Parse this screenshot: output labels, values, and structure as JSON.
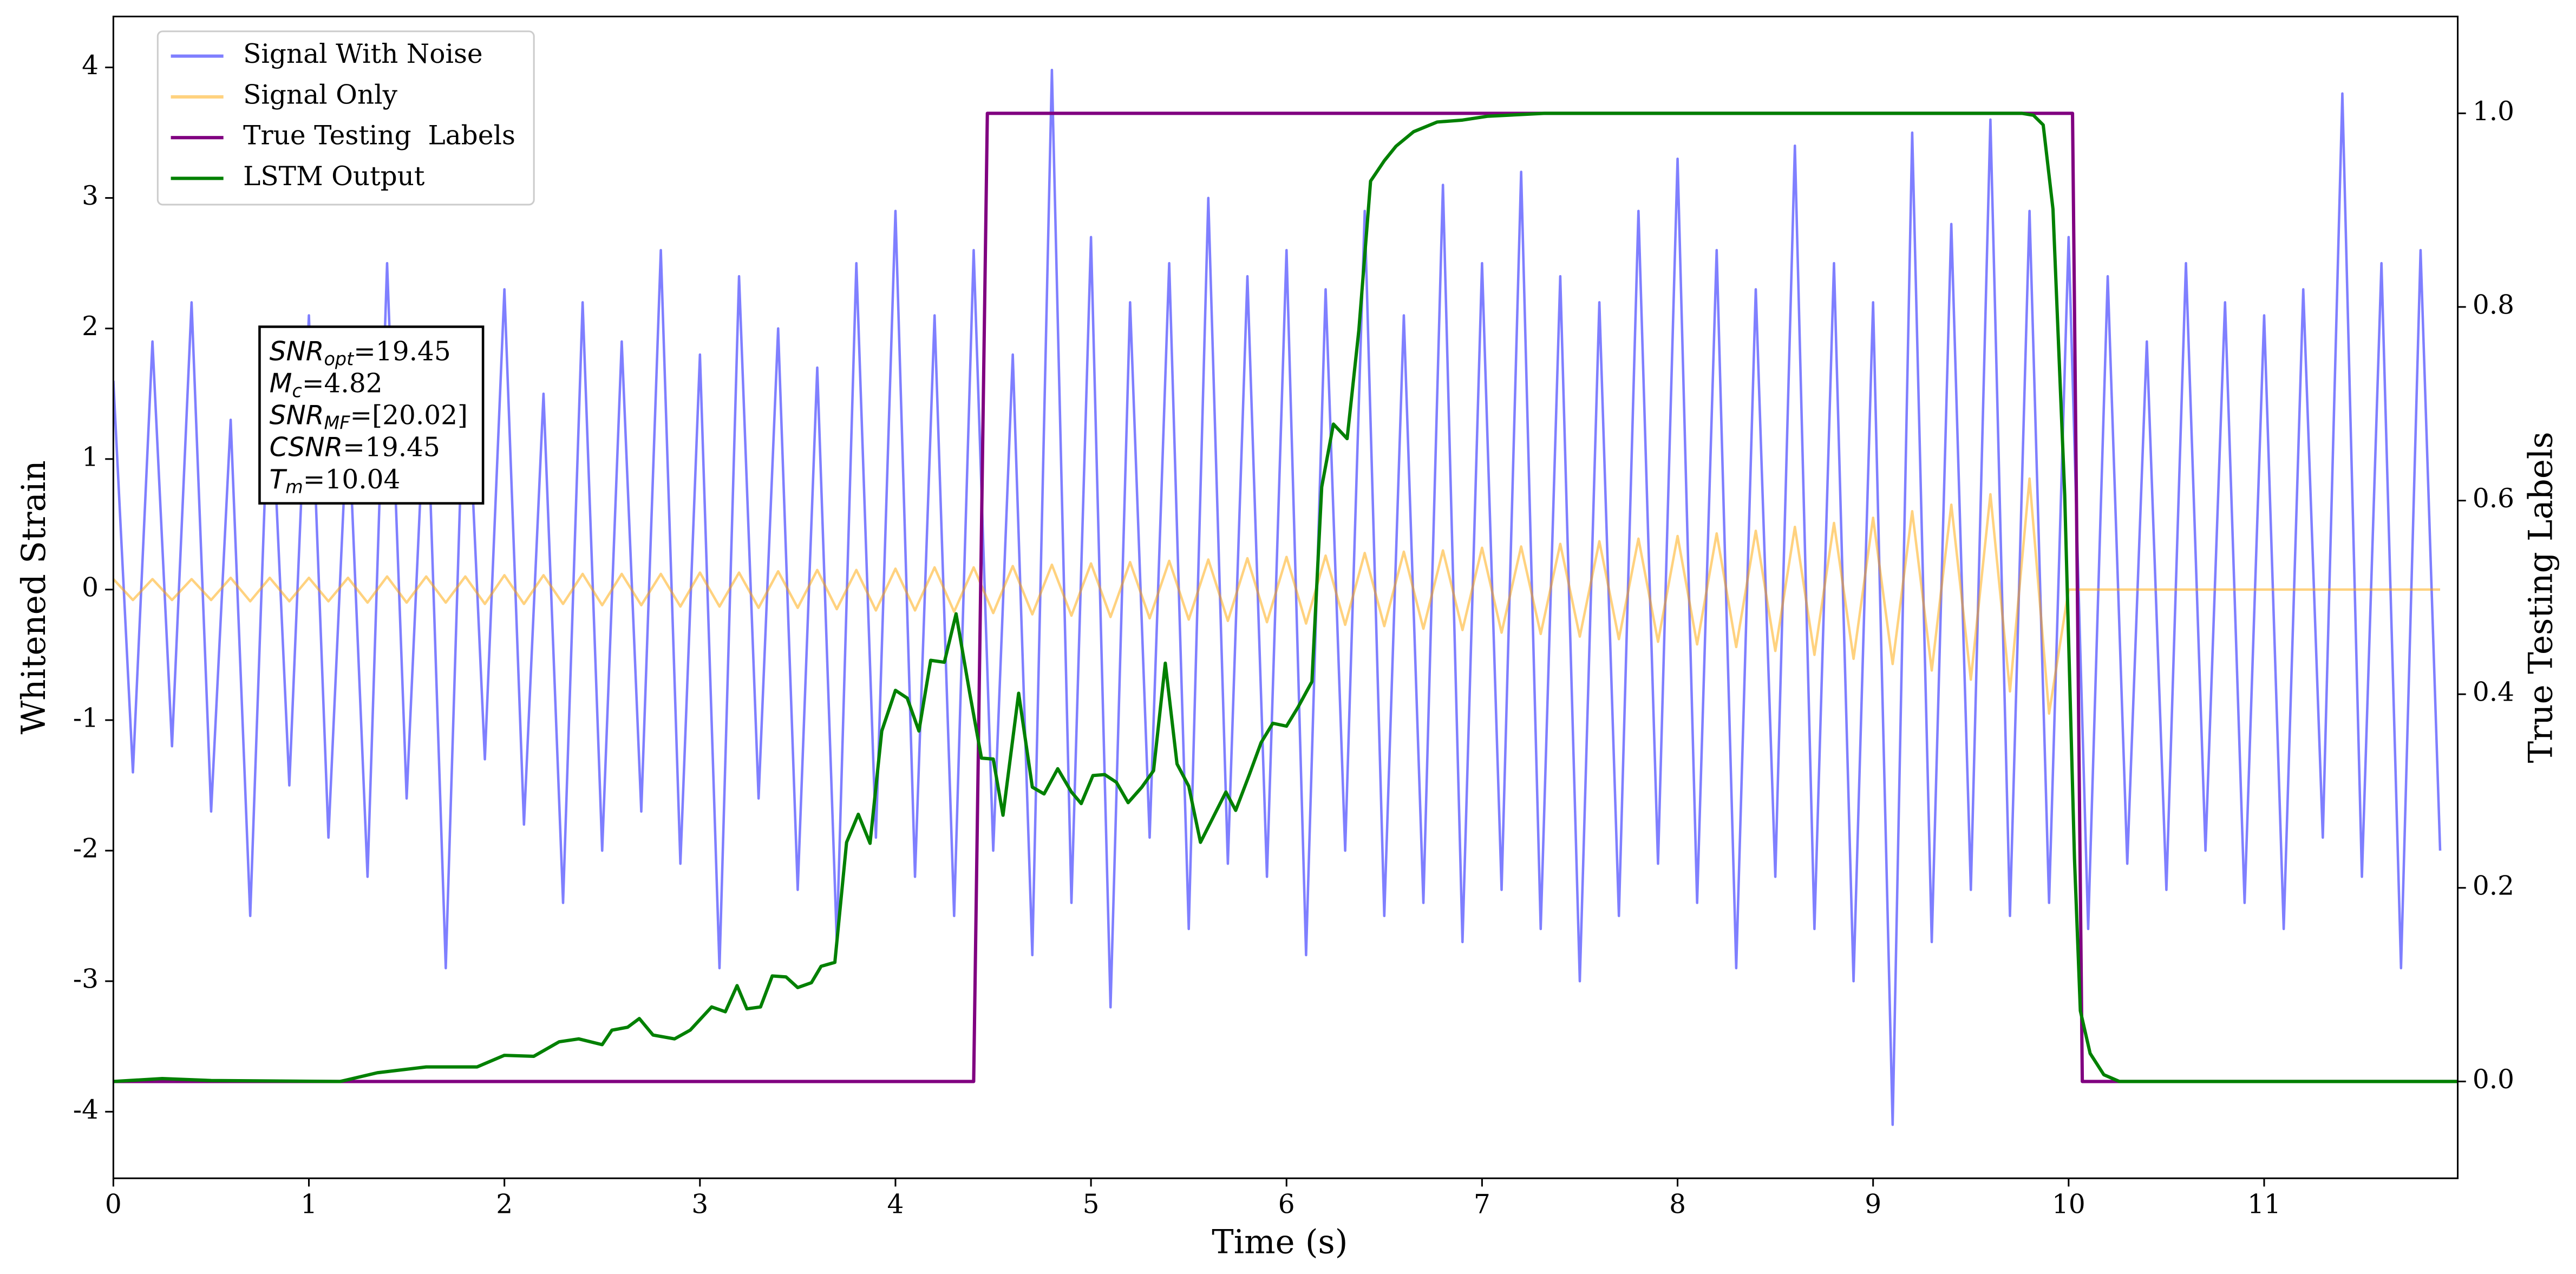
{
  "chart_data": {
    "type": "line",
    "xlabel": "Time (s)",
    "ylabel": "Whitened Strain",
    "y2label": "True Testing Labels",
    "xlim": [
      0,
      11.99
    ],
    "ylim": [
      -4.51,
      4.39
    ],
    "y2lim": [
      -0.1,
      1.1
    ],
    "xticks": [
      0,
      1,
      2,
      3,
      4,
      5,
      6,
      7,
      8,
      9,
      10,
      11
    ],
    "yticks": [
      -4,
      -3,
      -2,
      -1,
      0,
      1,
      2,
      3,
      4
    ],
    "y2ticks": [
      {
        "value": 0,
        "label": "0.0"
      },
      {
        "value": 0.2,
        "label": "0.2"
      },
      {
        "value": 0.4,
        "label": "0.4"
      },
      {
        "value": 0.6,
        "label": "0.6"
      },
      {
        "value": 0.8,
        "label": "0.8"
      },
      {
        "value": 1,
        "label": "1.0"
      }
    ],
    "grid": false,
    "legend": "upper left",
    "annotation": [
      {
        "main": "SNR",
        "sub": "opt",
        "rest": "=19.45"
      },
      {
        "main": "M",
        "sub": "c",
        "rest": "=4.82"
      },
      {
        "main": "SNR",
        "sub": "MF",
        "rest": "=[20.02]"
      },
      {
        "main": "CSNR",
        "rest": "=19.45"
      },
      {
        "main": "T",
        "sub": "m",
        "rest": "=10.04"
      }
    ],
    "series": [
      {
        "name": "Signal With Noise",
        "color": "#0000ff",
        "opacity": 0.5,
        "axis": "y",
        "x": [
          0,
          0.1,
          0.2,
          0.3,
          0.4,
          0.5,
          0.6,
          0.7,
          0.8,
          0.9,
          1,
          1.1,
          1.2,
          1.3,
          1.4,
          1.5,
          1.6,
          1.7,
          1.8,
          1.9,
          2,
          2.1,
          2.2,
          2.3,
          2.4,
          2.5,
          2.6,
          2.7,
          2.8,
          2.9,
          3,
          3.1,
          3.2,
          3.3,
          3.4,
          3.5,
          3.6,
          3.7,
          3.8,
          3.9,
          4,
          4.1,
          4.2,
          4.3,
          4.4,
          4.5,
          4.6,
          4.7,
          4.8,
          4.9,
          5,
          5.1,
          5.2,
          5.3,
          5.4,
          5.5,
          5.6,
          5.7,
          5.8,
          5.9,
          6,
          6.1,
          6.2,
          6.3,
          6.4,
          6.5,
          6.6,
          6.7,
          6.8,
          6.9,
          7,
          7.1,
          7.2,
          7.3,
          7.4,
          7.5,
          7.6,
          7.7,
          7.8,
          7.9,
          8,
          8.1,
          8.2,
          8.3,
          8.4,
          8.5,
          8.6,
          8.7,
          8.8,
          8.9,
          9,
          9.1,
          9.2,
          9.3,
          9.4,
          9.5,
          9.6,
          9.7,
          9.8,
          9.9,
          10,
          10.1,
          10.2,
          10.3,
          10.4,
          10.5,
          10.6,
          10.7,
          10.8,
          10.9,
          11,
          11.1,
          11.2,
          11.3,
          11.4,
          11.5,
          11.6,
          11.7,
          11.8,
          11.9
        ],
        "values": [
          1.6,
          -1.4,
          1.9,
          -1.2,
          2.2,
          -1.7,
          1.3,
          -2.5,
          1.8,
          -1.5,
          2.1,
          -1.9,
          1.4,
          -2.2,
          2.5,
          -1.6,
          1.7,
          -2.9,
          2.0,
          -1.3,
          2.3,
          -1.8,
          1.5,
          -2.4,
          2.2,
          -2.0,
          1.9,
          -1.7,
          2.6,
          -2.1,
          1.8,
          -2.9,
          2.4,
          -1.6,
          2.0,
          -2.3,
          1.7,
          -2.7,
          2.5,
          -1.9,
          2.9,
          -2.2,
          2.1,
          -2.5,
          2.6,
          -2.0,
          1.8,
          -2.8,
          3.98,
          -2.4,
          2.7,
          -3.2,
          2.2,
          -1.9,
          2.5,
          -2.6,
          3.0,
          -2.1,
          2.4,
          -2.2,
          2.6,
          -2.8,
          2.3,
          -2.0,
          2.9,
          -2.5,
          2.1,
          -2.4,
          3.1,
          -2.7,
          2.5,
          -2.3,
          3.2,
          -2.6,
          2.4,
          -3.0,
          2.2,
          -2.5,
          2.9,
          -2.1,
          3.3,
          -2.4,
          2.6,
          -2.9,
          2.3,
          -2.2,
          3.4,
          -2.6,
          2.5,
          -3.0,
          2.2,
          -4.1,
          3.5,
          -2.7,
          2.8,
          -2.3,
          3.6,
          -2.5,
          2.9,
          -2.4,
          2.7,
          -2.6,
          2.4,
          -2.1,
          1.9,
          -2.3,
          2.5,
          -2.0,
          2.2,
          -2.4,
          2.1,
          -2.6,
          2.3,
          -1.9,
          3.8,
          -2.2,
          2.5,
          -2.9,
          2.6,
          -2.0
        ]
      },
      {
        "name": "Signal Only",
        "color": "#ffa500",
        "opacity": 0.5,
        "axis": "y",
        "x": [
          0,
          0.1,
          0.2,
          0.3,
          0.4,
          0.5,
          0.6,
          0.7,
          0.8,
          0.9,
          1,
          1.1,
          1.2,
          1.3,
          1.4,
          1.5,
          1.6,
          1.7,
          1.8,
          1.9,
          2,
          2.1,
          2.2,
          2.3,
          2.4,
          2.5,
          2.6,
          2.7,
          2.8,
          2.9,
          3,
          3.1,
          3.2,
          3.3,
          3.4,
          3.5,
          3.6,
          3.7,
          3.8,
          3.9,
          4,
          4.1,
          4.2,
          4.3,
          4.4,
          4.5,
          4.6,
          4.7,
          4.8,
          4.9,
          5,
          5.1,
          5.2,
          5.3,
          5.4,
          5.5,
          5.6,
          5.7,
          5.8,
          5.9,
          6,
          6.1,
          6.2,
          6.3,
          6.4,
          6.5,
          6.6,
          6.7,
          6.8,
          6.9,
          7,
          7.1,
          7.2,
          7.3,
          7.4,
          7.5,
          7.6,
          7.7,
          7.8,
          7.9,
          8,
          8.1,
          8.2,
          8.3,
          8.4,
          8.5,
          8.6,
          8.7,
          8.8,
          8.9,
          9,
          9.1,
          9.2,
          9.3,
          9.4,
          9.5,
          9.6,
          9.7,
          9.8,
          9.9,
          10,
          10.1,
          10.2,
          10.3,
          10.4,
          10.5,
          10.6,
          10.7,
          10.8,
          10.9,
          11,
          11.1,
          11.2,
          11.3,
          11.4,
          11.5,
          11.6,
          11.7,
          11.8,
          11.9
        ],
        "values": [
          0.08,
          -0.08,
          0.08,
          -0.08,
          0.08,
          -0.08,
          0.09,
          -0.09,
          0.09,
          -0.09,
          0.09,
          -0.09,
          0.09,
          -0.1,
          0.1,
          -0.1,
          0.1,
          -0.1,
          0.1,
          -0.11,
          0.11,
          -0.11,
          0.11,
          -0.11,
          0.12,
          -0.12,
          0.12,
          -0.12,
          0.12,
          -0.13,
          0.13,
          -0.13,
          0.13,
          -0.14,
          0.14,
          -0.14,
          0.15,
          -0.15,
          0.15,
          -0.16,
          0.16,
          -0.16,
          0.17,
          -0.17,
          0.17,
          -0.18,
          0.18,
          -0.19,
          0.19,
          -0.2,
          0.2,
          -0.21,
          0.21,
          -0.22,
          0.22,
          -0.23,
          0.23,
          -0.24,
          0.24,
          -0.25,
          0.25,
          -0.26,
          0.26,
          -0.27,
          0.28,
          -0.28,
          0.29,
          -0.3,
          0.3,
          -0.31,
          0.32,
          -0.33,
          0.33,
          -0.34,
          0.35,
          -0.36,
          0.37,
          -0.38,
          0.39,
          -0.4,
          0.41,
          -0.42,
          0.43,
          -0.44,
          0.45,
          -0.47,
          0.48,
          -0.5,
          0.51,
          -0.53,
          0.55,
          -0.57,
          0.6,
          -0.62,
          0.65,
          -0.69,
          0.73,
          -0.78,
          0.85,
          -0.95,
          0,
          0,
          0,
          0,
          0,
          0,
          0,
          0,
          0,
          0,
          0,
          0,
          0,
          0,
          0,
          0,
          0,
          0,
          0,
          0
        ]
      },
      {
        "name": "True Testing  Labels",
        "color": "#800080",
        "opacity": 1,
        "axis": "y2",
        "x": [
          0,
          4.4,
          4.47,
          10.02,
          10.07,
          11.99
        ],
        "values": [
          0,
          0,
          1,
          1,
          0,
          0
        ]
      },
      {
        "name": "LSTM Output",
        "color": "#008000",
        "opacity": 1,
        "axis": "y2",
        "x": [
          0,
          0.25,
          0.5,
          1.16,
          1.35,
          1.6,
          1.86,
          2,
          2.15,
          2.28,
          2.38,
          2.5,
          2.55,
          2.63,
          2.69,
          2.76,
          2.87,
          2.95,
          3.06,
          3.13,
          3.19,
          3.24,
          3.31,
          3.37,
          3.44,
          3.5,
          3.57,
          3.62,
          3.69,
          3.75,
          3.81,
          3.87,
          3.93,
          4,
          4.06,
          4.12,
          4.18,
          4.25,
          4.31,
          4.38,
          4.44,
          4.5,
          4.55,
          4.63,
          4.7,
          4.76,
          4.83,
          4.9,
          4.95,
          5.01,
          5.07,
          5.13,
          5.19,
          5.26,
          5.32,
          5.38,
          5.44,
          5.5,
          5.56,
          5.62,
          5.69,
          5.74,
          5.81,
          5.87,
          5.93,
          6,
          6.06,
          6.13,
          6.18,
          6.24,
          6.31,
          6.37,
          6.43,
          6.5,
          6.56,
          6.65,
          6.77,
          6.9,
          7.03,
          7.32,
          9.76,
          9.82,
          9.87,
          9.92,
          9.98,
          10.03,
          10.06,
          10.11,
          10.18,
          10.26,
          11.99
        ],
        "values": [
          0,
          0.003,
          0.001,
          0,
          0.009,
          0.015,
          0.015,
          0.027,
          0.026,
          0.041,
          0.044,
          0.038,
          0.053,
          0.056,
          0.065,
          0.048,
          0.044,
          0.053,
          0.077,
          0.072,
          0.099,
          0.075,
          0.077,
          0.109,
          0.108,
          0.097,
          0.102,
          0.119,
          0.123,
          0.247,
          0.276,
          0.246,
          0.362,
          0.404,
          0.396,
          0.362,
          0.435,
          0.433,
          0.483,
          0.401,
          0.334,
          0.333,
          0.275,
          0.401,
          0.304,
          0.297,
          0.323,
          0.299,
          0.287,
          0.316,
          0.317,
          0.309,
          0.288,
          0.304,
          0.321,
          0.432,
          0.328,
          0.305,
          0.247,
          0.271,
          0.299,
          0.28,
          0.317,
          0.35,
          0.37,
          0.367,
          0.387,
          0.413,
          0.614,
          0.679,
          0.664,
          0.776,
          0.93,
          0.951,
          0.966,
          0.981,
          0.991,
          0.993,
          0.997,
          1,
          1,
          0.998,
          0.988,
          0.901,
          0.606,
          0.23,
          0.073,
          0.029,
          0.007,
          0,
          0
        ]
      }
    ]
  }
}
